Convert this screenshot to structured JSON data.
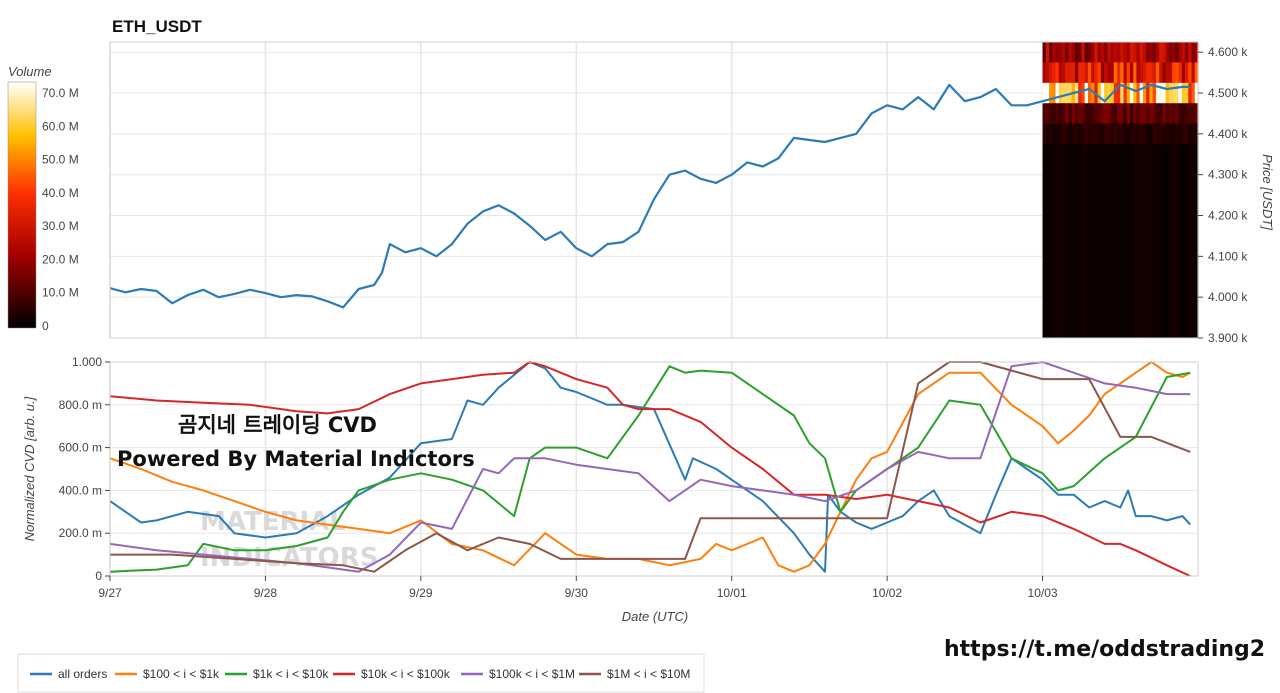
{
  "chart_data": [
    {
      "type": "line",
      "title": "ETH_USDT",
      "ylabel": "Price [USDT]",
      "ylim": [
        3900,
        4625
      ],
      "y_ticks": [
        {
          "v": 3900,
          "label": "3.900 k"
        },
        {
          "v": 4000,
          "label": "4.000 k"
        },
        {
          "v": 4100,
          "label": "4.100 k"
        },
        {
          "v": 4200,
          "label": "4.200 k"
        },
        {
          "v": 4300,
          "label": "4.300 k"
        },
        {
          "v": 4400,
          "label": "4.400 k"
        },
        {
          "v": 4500,
          "label": "4.500 k"
        },
        {
          "v": 4600,
          "label": "4.600 k"
        }
      ],
      "xlim": [
        0,
        7
      ],
      "x_unit": "days since 9/27 00:00 UTC",
      "grid": true,
      "series": [
        {
          "name": "price",
          "color": "#2c7bb6",
          "x": [
            0,
            0.1,
            0.2,
            0.3,
            0.4,
            0.5,
            0.6,
            0.7,
            0.8,
            0.9,
            1.0,
            1.1,
            1.2,
            1.3,
            1.4,
            1.5,
            1.6,
            1.7,
            1.75,
            1.8,
            1.9,
            2.0,
            2.1,
            2.2,
            2.3,
            2.4,
            2.5,
            2.6,
            2.7,
            2.8,
            2.9,
            3.0,
            3.1,
            3.2,
            3.3,
            3.4,
            3.5,
            3.6,
            3.7,
            3.8,
            3.9,
            4.0,
            4.1,
            4.2,
            4.3,
            4.4,
            4.5,
            4.6,
            4.7,
            4.8,
            4.9,
            5.0,
            5.1,
            5.2,
            5.3,
            5.4,
            5.5,
            5.6,
            5.7,
            5.8,
            5.9,
            6.0,
            6.1,
            6.2,
            6.3,
            6.4,
            6.5,
            6.6,
            6.7,
            6.8,
            6.9,
            6.95
          ],
          "y": [
            4022,
            4012,
            4020,
            4015,
            3985,
            4005,
            4018,
            4000,
            4008,
            4018,
            4010,
            4000,
            4005,
            4002,
            3990,
            3975,
            4020,
            4030,
            4060,
            4130,
            4110,
            4120,
            4100,
            4130,
            4180,
            4210,
            4225,
            4205,
            4175,
            4140,
            4160,
            4120,
            4100,
            4130,
            4135,
            4160,
            4240,
            4300,
            4310,
            4290,
            4280,
            4300,
            4330,
            4320,
            4340,
            4390,
            4385,
            4380,
            4390,
            4400,
            4450,
            4470,
            4460,
            4490,
            4460,
            4520,
            4480,
            4490,
            4510,
            4470,
            4470,
            4480,
            4490,
            4500,
            4510,
            4480,
            4520,
            4505,
            4520,
            4510,
            4515,
            4515
          ]
        }
      ]
    },
    {
      "type": "heatmap",
      "colorbar_label": "Volume",
      "colorbar_ticks": [
        {
          "v": 0,
          "label": "0"
        },
        {
          "v": 10,
          "label": "10.0 M"
        },
        {
          "v": 20,
          "label": "20.0 M"
        },
        {
          "v": 30,
          "label": "30.0 M"
        },
        {
          "v": 40,
          "label": "40.0 M"
        },
        {
          "v": 50,
          "label": "50.0 M"
        },
        {
          "v": 60,
          "label": "60.0 M"
        },
        {
          "v": 70,
          "label": "70.0 M"
        }
      ],
      "zlim": [
        0,
        74
      ],
      "x_range": [
        6.0,
        6.95
      ],
      "bands": [
        {
          "price_from": 4575,
          "price_to": 4625,
          "level": 22
        },
        {
          "price_from": 4525,
          "price_to": 4575,
          "level": 34
        },
        {
          "price_from": 4475,
          "price_to": 4525,
          "level": 60
        },
        {
          "price_from": 4425,
          "price_to": 4475,
          "level": 12
        },
        {
          "price_from": 4375,
          "price_to": 4425,
          "level": 5
        },
        {
          "price_from": 3900,
          "price_to": 4375,
          "level": 2
        }
      ]
    },
    {
      "type": "line",
      "ylabel": "Normalized CVD [arb. u.]",
      "xlabel": "Date (UTC)",
      "ylim": [
        0,
        1
      ],
      "y_ticks": [
        {
          "v": 0,
          "label": "0"
        },
        {
          "v": 0.2,
          "label": "200.0 m"
        },
        {
          "v": 0.4,
          "label": "400.0 m"
        },
        {
          "v": 0.6,
          "label": "600.0 m"
        },
        {
          "v": 0.8,
          "label": "800.0 m"
        },
        {
          "v": 1.0,
          "label": "1.000"
        }
      ],
      "x_ticks": [
        {
          "v": 0,
          "label": "9/27"
        },
        {
          "v": 1,
          "label": "9/28"
        },
        {
          "v": 2,
          "label": "9/29"
        },
        {
          "v": 3,
          "label": "9/30"
        },
        {
          "v": 4,
          "label": "10/01"
        },
        {
          "v": 5,
          "label": "10/02"
        },
        {
          "v": 6,
          "label": "10/03"
        }
      ],
      "xlim": [
        0,
        7
      ],
      "grid": true,
      "legend_position": "bottom-left",
      "series": [
        {
          "name": "all orders",
          "color": "#2c7bb6",
          "x": [
            0,
            0.2,
            0.3,
            0.5,
            0.7,
            0.8,
            1.0,
            1.2,
            1.4,
            1.6,
            1.8,
            2.0,
            2.2,
            2.3,
            2.4,
            2.5,
            2.7,
            2.8,
            2.9,
            3.0,
            3.2,
            3.3,
            3.5,
            3.7,
            3.75,
            3.9,
            4.0,
            4.2,
            4.4,
            4.5,
            4.6,
            4.62,
            4.7,
            4.8,
            4.9,
            5.0,
            5.1,
            5.2,
            5.3,
            5.4,
            5.6,
            5.7,
            5.8,
            5.9,
            6.0,
            6.1,
            6.2,
            6.3,
            6.4,
            6.5,
            6.55,
            6.6,
            6.7,
            6.8,
            6.9,
            6.95
          ],
          "y": [
            0.35,
            0.25,
            0.26,
            0.3,
            0.28,
            0.2,
            0.18,
            0.2,
            0.28,
            0.38,
            0.46,
            0.62,
            0.64,
            0.82,
            0.8,
            0.88,
            1.0,
            0.97,
            0.88,
            0.86,
            0.8,
            0.8,
            0.78,
            0.45,
            0.55,
            0.5,
            0.45,
            0.35,
            0.2,
            0.1,
            0.02,
            0.38,
            0.3,
            0.25,
            0.22,
            0.25,
            0.28,
            0.35,
            0.4,
            0.28,
            0.2,
            0.38,
            0.55,
            0.5,
            0.45,
            0.38,
            0.38,
            0.32,
            0.35,
            0.32,
            0.4,
            0.28,
            0.28,
            0.26,
            0.28,
            0.24
          ]
        },
        {
          "name": "$100 < i < $1k",
          "color": "#ff7f0e",
          "x": [
            0,
            0.2,
            0.4,
            0.6,
            0.8,
            1.0,
            1.2,
            1.4,
            1.6,
            1.8,
            2.0,
            2.2,
            2.4,
            2.6,
            2.8,
            3.0,
            3.2,
            3.4,
            3.6,
            3.8,
            3.9,
            4.0,
            4.2,
            4.3,
            4.4,
            4.5,
            4.6,
            4.7,
            4.8,
            4.9,
            5.0,
            5.2,
            5.4,
            5.6,
            5.8,
            6.0,
            6.1,
            6.2,
            6.3,
            6.4,
            6.5,
            6.6,
            6.7,
            6.8,
            6.9,
            6.95
          ],
          "y": [
            0.55,
            0.5,
            0.44,
            0.4,
            0.35,
            0.3,
            0.26,
            0.24,
            0.22,
            0.2,
            0.26,
            0.15,
            0.12,
            0.05,
            0.2,
            0.1,
            0.08,
            0.08,
            0.05,
            0.08,
            0.15,
            0.12,
            0.18,
            0.05,
            0.02,
            0.05,
            0.15,
            0.3,
            0.45,
            0.55,
            0.58,
            0.85,
            0.95,
            0.95,
            0.8,
            0.7,
            0.62,
            0.68,
            0.75,
            0.85,
            0.9,
            0.95,
            1.0,
            0.95,
            0.93,
            0.95
          ]
        },
        {
          "name": "$1k < i < $10k",
          "color": "#2ca02c",
          "x": [
            0,
            0.3,
            0.5,
            0.6,
            0.8,
            1.0,
            1.2,
            1.4,
            1.5,
            1.6,
            1.8,
            2.0,
            2.2,
            2.4,
            2.6,
            2.7,
            2.8,
            3.0,
            3.2,
            3.4,
            3.6,
            3.7,
            3.8,
            4.0,
            4.2,
            4.4,
            4.5,
            4.6,
            4.7,
            4.8,
            4.9,
            5.0,
            5.1,
            5.2,
            5.4,
            5.6,
            5.8,
            6.0,
            6.1,
            6.2,
            6.4,
            6.6,
            6.8,
            6.95
          ],
          "y": [
            0.02,
            0.03,
            0.05,
            0.15,
            0.12,
            0.12,
            0.14,
            0.18,
            0.3,
            0.4,
            0.45,
            0.48,
            0.45,
            0.4,
            0.28,
            0.55,
            0.6,
            0.6,
            0.55,
            0.75,
            0.98,
            0.95,
            0.96,
            0.95,
            0.85,
            0.75,
            0.62,
            0.55,
            0.3,
            0.4,
            0.45,
            0.5,
            0.55,
            0.6,
            0.82,
            0.8,
            0.55,
            0.48,
            0.4,
            0.42,
            0.55,
            0.65,
            0.93,
            0.95
          ]
        },
        {
          "name": "$10k < i < $100k",
          "color": "#d62728",
          "x": [
            0,
            0.3,
            0.6,
            0.9,
            1.2,
            1.4,
            1.6,
            1.8,
            2.0,
            2.2,
            2.4,
            2.6,
            2.7,
            2.8,
            3.0,
            3.2,
            3.3,
            3.4,
            3.6,
            3.8,
            4.0,
            4.2,
            4.4,
            4.6,
            4.8,
            5.0,
            5.2,
            5.4,
            5.6,
            5.8,
            6.0,
            6.2,
            6.4,
            6.5,
            6.6,
            6.8,
            6.95
          ],
          "y": [
            0.84,
            0.82,
            0.81,
            0.8,
            0.77,
            0.76,
            0.78,
            0.85,
            0.9,
            0.92,
            0.94,
            0.95,
            1.0,
            0.98,
            0.92,
            0.88,
            0.8,
            0.78,
            0.78,
            0.72,
            0.6,
            0.5,
            0.38,
            0.38,
            0.36,
            0.38,
            0.35,
            0.32,
            0.25,
            0.3,
            0.28,
            0.22,
            0.15,
            0.15,
            0.12,
            0.05,
            0.0
          ]
        },
        {
          "name": "$100k < i < $1M",
          "color": "#9467bd",
          "x": [
            0,
            0.3,
            0.6,
            0.9,
            1.2,
            1.4,
            1.6,
            1.8,
            2.0,
            2.2,
            2.4,
            2.5,
            2.6,
            2.8,
            3.0,
            3.2,
            3.4,
            3.6,
            3.8,
            4.0,
            4.2,
            4.4,
            4.6,
            4.8,
            5.0,
            5.2,
            5.4,
            5.6,
            5.8,
            6.0,
            6.2,
            6.4,
            6.6,
            6.8,
            6.95
          ],
          "y": [
            0.15,
            0.12,
            0.1,
            0.08,
            0.06,
            0.04,
            0.02,
            0.1,
            0.25,
            0.22,
            0.5,
            0.48,
            0.55,
            0.55,
            0.52,
            0.5,
            0.48,
            0.35,
            0.45,
            0.42,
            0.4,
            0.38,
            0.35,
            0.4,
            0.5,
            0.58,
            0.55,
            0.55,
            0.98,
            1.0,
            0.95,
            0.9,
            0.88,
            0.85,
            0.85
          ]
        },
        {
          "name": "$1M < i < $10M",
          "color": "#8c564b",
          "x": [
            0,
            0.4,
            0.8,
            1.2,
            1.5,
            1.7,
            1.9,
            2.1,
            2.3,
            2.5,
            2.7,
            2.9,
            3.1,
            3.3,
            3.5,
            3.7,
            3.8,
            4.0,
            4.3,
            4.6,
            4.9,
            5.0,
            5.2,
            5.4,
            5.6,
            6.0,
            6.3,
            6.5,
            6.7,
            6.95
          ],
          "y": [
            0.1,
            0.1,
            0.08,
            0.06,
            0.05,
            0.02,
            0.12,
            0.2,
            0.12,
            0.18,
            0.15,
            0.08,
            0.08,
            0.08,
            0.08,
            0.08,
            0.27,
            0.27,
            0.27,
            0.27,
            0.27,
            0.27,
            0.9,
            1.0,
            1.0,
            0.92,
            0.92,
            0.65,
            0.65,
            0.58
          ]
        }
      ]
    }
  ],
  "overlay": {
    "line1": "곰지네 트레이딩 CVD",
    "line2": "Powered By Material Indictors",
    "watermark_line1": "MATERIAL",
    "watermark_line2": "INDICATORS",
    "link": "https://t.me/oddstrading2"
  },
  "colors": {
    "grid": "#e6e6e6",
    "axis": "#444444",
    "background": "#ffffff"
  }
}
